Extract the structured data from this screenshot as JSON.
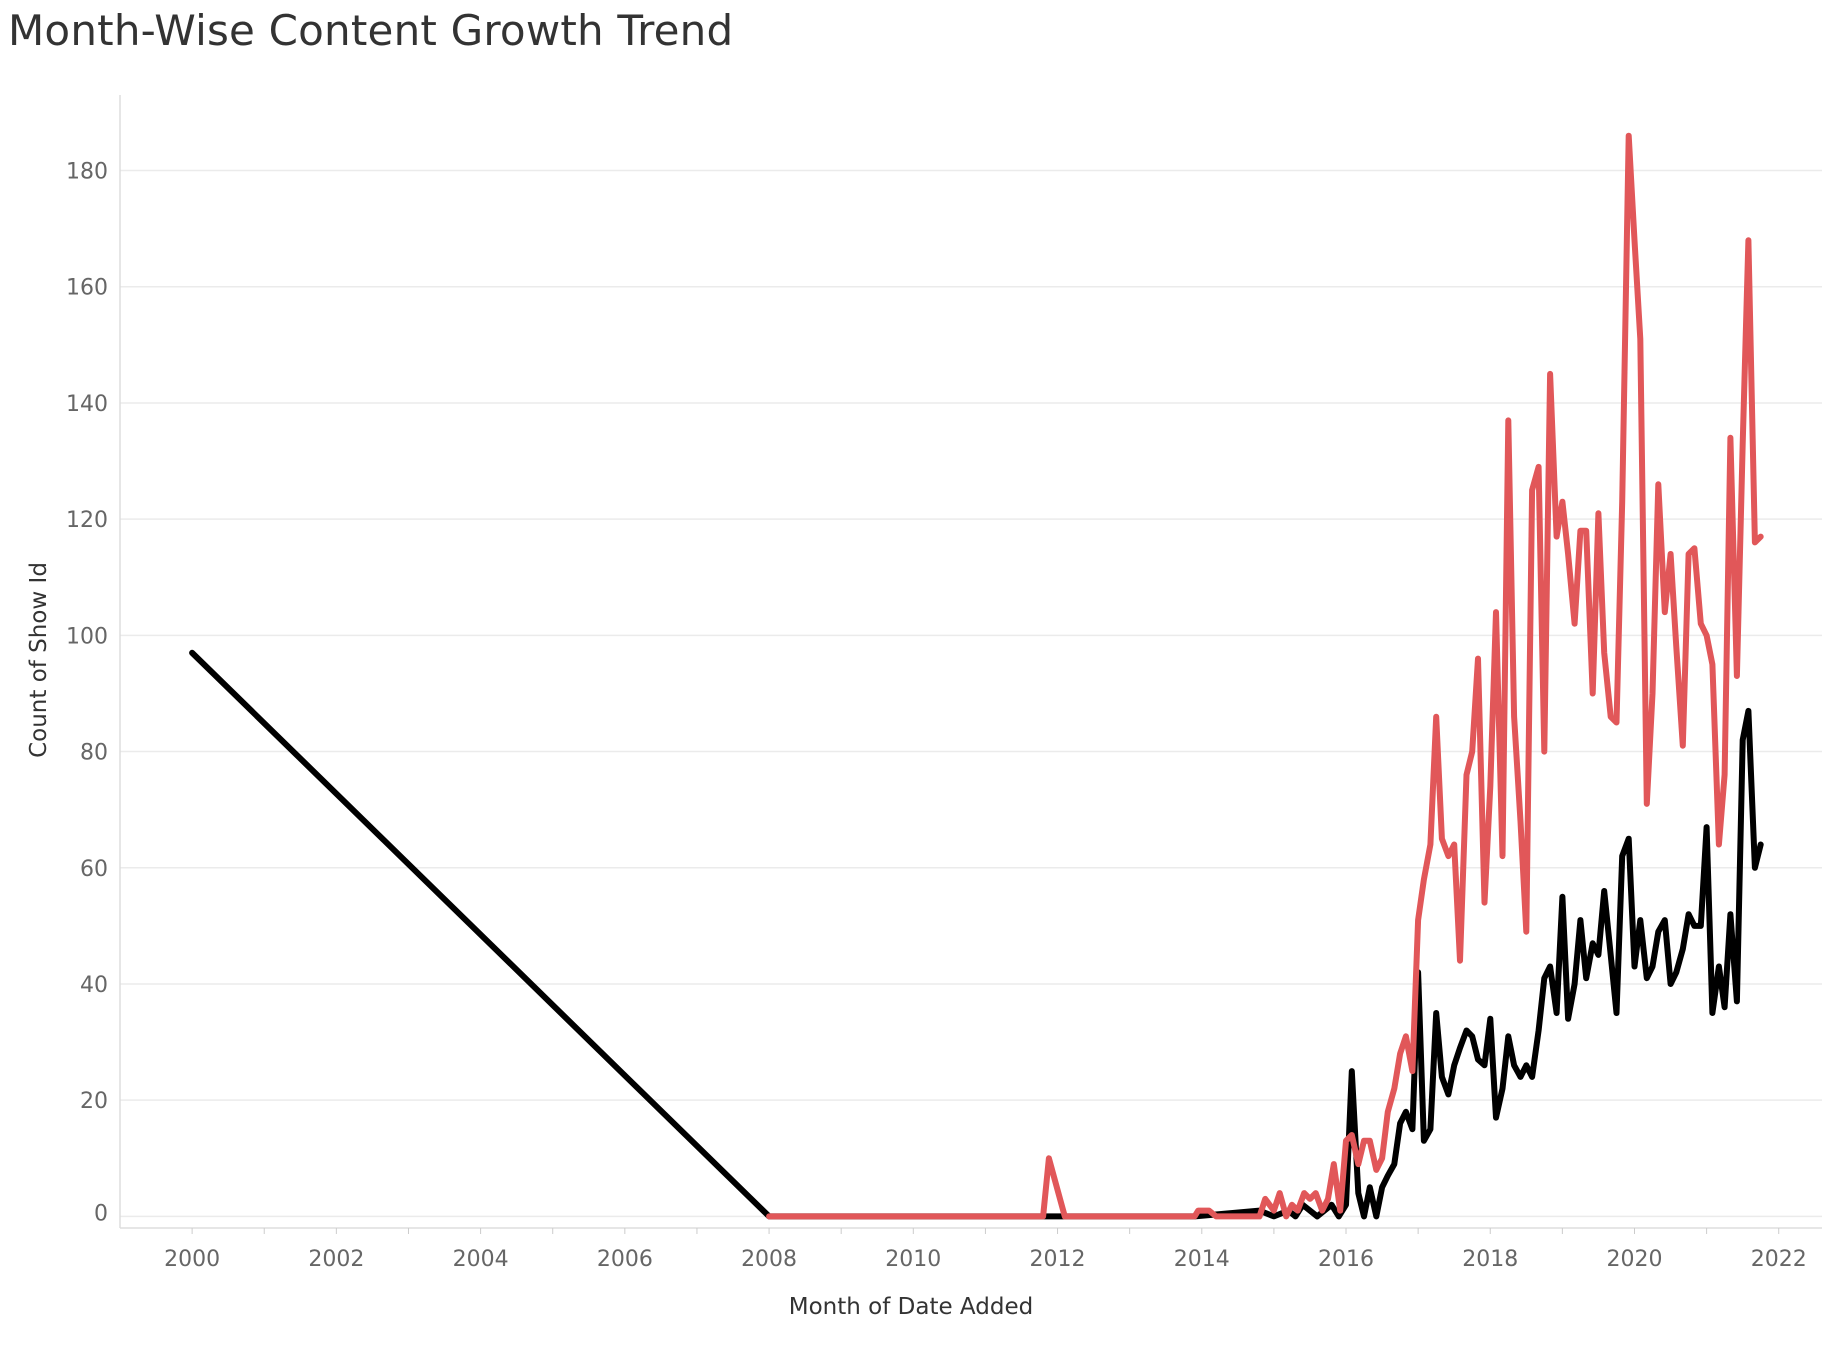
{
  "chart_data": {
    "type": "line",
    "title": "Month-Wise Content Growth Trend",
    "xlabel": "Month of Date Added",
    "ylabel": "Count of Show Id",
    "xlim": [
      1999.0,
      2022.6
    ],
    "ylim": [
      -2,
      193
    ],
    "x_ticks": [
      "2000",
      "2002",
      "2004",
      "2006",
      "2008",
      "2010",
      "2012",
      "2014",
      "2016",
      "2018",
      "2020",
      "2022"
    ],
    "y_ticks": [
      "0",
      "20",
      "40",
      "60",
      "80",
      "100",
      "120",
      "140",
      "160",
      "180"
    ],
    "grid": "horizontal",
    "colors": {
      "black_series": "#000000",
      "red_series": "#e15759",
      "grid": "#ebebeb",
      "axis": "#dddddd"
    },
    "series": [
      {
        "color": "#000000",
        "points": [
          [
            2000.0,
            97
          ],
          [
            2008.0,
            0
          ],
          [
            2013.9,
            0
          ],
          [
            2014.8,
            1
          ],
          [
            2015.0,
            0
          ],
          [
            2015.2,
            1
          ],
          [
            2015.3,
            0
          ],
          [
            2015.4,
            2
          ],
          [
            2015.6,
            0
          ],
          [
            2015.8,
            2
          ],
          [
            2015.9,
            0
          ],
          [
            2016.0,
            2
          ],
          [
            2016.08,
            25
          ],
          [
            2016.17,
            4
          ],
          [
            2016.25,
            0
          ],
          [
            2016.33,
            5
          ],
          [
            2016.42,
            0
          ],
          [
            2016.5,
            5
          ],
          [
            2016.58,
            7
          ],
          [
            2016.67,
            9
          ],
          [
            2016.75,
            16
          ],
          [
            2016.83,
            18
          ],
          [
            2016.92,
            15
          ],
          [
            2017.0,
            42
          ],
          [
            2017.08,
            13
          ],
          [
            2017.17,
            15
          ],
          [
            2017.25,
            35
          ],
          [
            2017.33,
            24
          ],
          [
            2017.42,
            21
          ],
          [
            2017.5,
            26
          ],
          [
            2017.58,
            29
          ],
          [
            2017.67,
            32
          ],
          [
            2017.75,
            31
          ],
          [
            2017.83,
            27
          ],
          [
            2017.92,
            26
          ],
          [
            2018.0,
            34
          ],
          [
            2018.08,
            17
          ],
          [
            2018.17,
            22
          ],
          [
            2018.25,
            31
          ],
          [
            2018.33,
            26
          ],
          [
            2018.42,
            24
          ],
          [
            2018.5,
            26
          ],
          [
            2018.58,
            24
          ],
          [
            2018.67,
            32
          ],
          [
            2018.75,
            41
          ],
          [
            2018.83,
            43
          ],
          [
            2018.92,
            35
          ],
          [
            2019.0,
            55
          ],
          [
            2019.08,
            34
          ],
          [
            2019.17,
            40
          ],
          [
            2019.25,
            51
          ],
          [
            2019.33,
            41
          ],
          [
            2019.42,
            47
          ],
          [
            2019.5,
            45
          ],
          [
            2019.58,
            56
          ],
          [
            2019.67,
            45
          ],
          [
            2019.75,
            35
          ],
          [
            2019.83,
            62
          ],
          [
            2019.92,
            65
          ],
          [
            2020.0,
            43
          ],
          [
            2020.08,
            51
          ],
          [
            2020.17,
            41
          ],
          [
            2020.25,
            43
          ],
          [
            2020.33,
            49
          ],
          [
            2020.42,
            51
          ],
          [
            2020.5,
            40
          ],
          [
            2020.58,
            42
          ],
          [
            2020.67,
            46
          ],
          [
            2020.75,
            52
          ],
          [
            2020.83,
            50
          ],
          [
            2020.92,
            50
          ],
          [
            2021.0,
            67
          ],
          [
            2021.08,
            35
          ],
          [
            2021.17,
            43
          ],
          [
            2021.25,
            36
          ],
          [
            2021.33,
            52
          ],
          [
            2021.42,
            37
          ],
          [
            2021.5,
            82
          ],
          [
            2021.58,
            87
          ],
          [
            2021.67,
            60
          ],
          [
            2021.75,
            64
          ]
        ]
      },
      {
        "color": "#e15759",
        "points": [
          [
            2008.0,
            0
          ],
          [
            2011.8,
            0
          ],
          [
            2011.88,
            10
          ],
          [
            2012.1,
            0
          ],
          [
            2013.9,
            0
          ],
          [
            2013.95,
            1
          ],
          [
            2014.1,
            1
          ],
          [
            2014.2,
            0
          ],
          [
            2014.8,
            0
          ],
          [
            2014.88,
            3
          ],
          [
            2015.0,
            1
          ],
          [
            2015.08,
            4
          ],
          [
            2015.17,
            0
          ],
          [
            2015.25,
            2
          ],
          [
            2015.33,
            1
          ],
          [
            2015.42,
            4
          ],
          [
            2015.5,
            3
          ],
          [
            2015.58,
            4
          ],
          [
            2015.67,
            1
          ],
          [
            2015.75,
            3
          ],
          [
            2015.83,
            9
          ],
          [
            2015.92,
            1
          ],
          [
            2016.0,
            13
          ],
          [
            2016.08,
            14
          ],
          [
            2016.17,
            9
          ],
          [
            2016.25,
            13
          ],
          [
            2016.33,
            13
          ],
          [
            2016.42,
            8
          ],
          [
            2016.5,
            10
          ],
          [
            2016.58,
            18
          ],
          [
            2016.67,
            22
          ],
          [
            2016.75,
            28
          ],
          [
            2016.83,
            31
          ],
          [
            2016.92,
            25
          ],
          [
            2017.0,
            51
          ],
          [
            2017.08,
            58
          ],
          [
            2017.17,
            64
          ],
          [
            2017.25,
            86
          ],
          [
            2017.33,
            65
          ],
          [
            2017.42,
            62
          ],
          [
            2017.5,
            64
          ],
          [
            2017.58,
            44
          ],
          [
            2017.67,
            76
          ],
          [
            2017.75,
            80
          ],
          [
            2017.83,
            96
          ],
          [
            2017.92,
            54
          ],
          [
            2018.0,
            74
          ],
          [
            2018.08,
            104
          ],
          [
            2018.17,
            62
          ],
          [
            2018.25,
            137
          ],
          [
            2018.33,
            86
          ],
          [
            2018.42,
            68
          ],
          [
            2018.5,
            49
          ],
          [
            2018.58,
            125
          ],
          [
            2018.67,
            129
          ],
          [
            2018.75,
            80
          ],
          [
            2018.83,
            145
          ],
          [
            2018.92,
            117
          ],
          [
            2019.0,
            123
          ],
          [
            2019.08,
            114
          ],
          [
            2019.17,
            102
          ],
          [
            2019.25,
            118
          ],
          [
            2019.33,
            118
          ],
          [
            2019.42,
            90
          ],
          [
            2019.5,
            121
          ],
          [
            2019.58,
            97
          ],
          [
            2019.67,
            86
          ],
          [
            2019.75,
            85
          ],
          [
            2019.83,
            123
          ],
          [
            2019.92,
            186
          ],
          [
            2020.0,
            168
          ],
          [
            2020.08,
            151
          ],
          [
            2020.17,
            71
          ],
          [
            2020.25,
            90
          ],
          [
            2020.33,
            126
          ],
          [
            2020.42,
            104
          ],
          [
            2020.5,
            114
          ],
          [
            2020.58,
            98
          ],
          [
            2020.67,
            81
          ],
          [
            2020.75,
            114
          ],
          [
            2020.83,
            115
          ],
          [
            2020.92,
            102
          ],
          [
            2021.0,
            100
          ],
          [
            2021.08,
            95
          ],
          [
            2021.17,
            64
          ],
          [
            2021.25,
            76
          ],
          [
            2021.33,
            134
          ],
          [
            2021.42,
            93
          ],
          [
            2021.5,
            133
          ],
          [
            2021.58,
            168
          ],
          [
            2021.67,
            116
          ],
          [
            2021.75,
            117
          ]
        ]
      }
    ]
  }
}
